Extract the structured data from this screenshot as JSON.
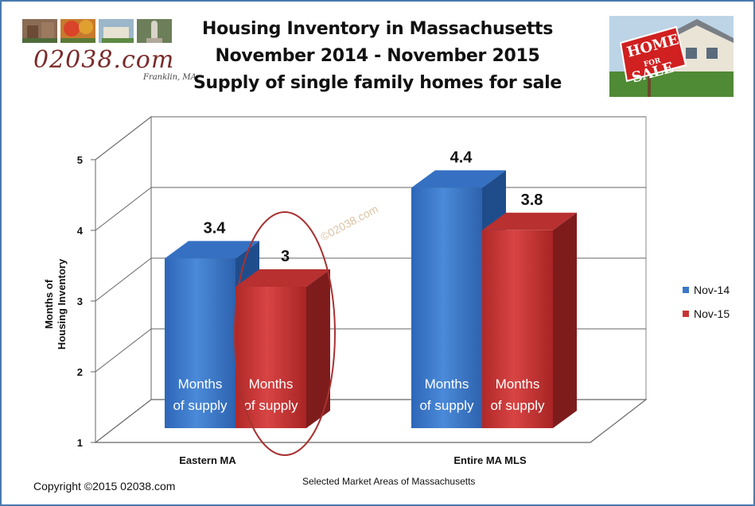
{
  "title_lines": [
    "Housing Inventory in Massachusetts",
    "November 2014 - November 2015",
    "Supply of single family homes for sale"
  ],
  "logo": {
    "text": "02038.com",
    "tagline": "Franklin, MA"
  },
  "house_sign": "HOME FOR SALE",
  "watermark": "©02038.com",
  "copyright": "Copyright ©2015  02038.com",
  "chart_data": {
    "type": "bar",
    "title": "Housing Inventory in Massachusetts November 2014 - November 2015 Supply of single family homes for sale",
    "categories": [
      "Eastern MA",
      "Entire MA MLS"
    ],
    "series": [
      {
        "name": "Nov-14",
        "values": [
          3.4,
          4.4
        ],
        "color": "#3b78c8"
      },
      {
        "name": "Nov-15",
        "values": [
          3.0,
          3.8
        ],
        "color": "#c83434"
      }
    ],
    "data_labels": [
      "3.4",
      "3",
      "4.4",
      "3.8"
    ],
    "bar_text": "Months\nof supply",
    "ylabel_lines": [
      "Months of",
      "Housing Inventory"
    ],
    "xlabel": "Selected Market Areas of Massachusetts",
    "yticks": [
      1,
      2,
      3,
      4,
      5
    ],
    "ylim": [
      1,
      5
    ],
    "legend_position": "right",
    "grid": true,
    "annotation": "circle around Eastern MA Nov-15 bar"
  }
}
